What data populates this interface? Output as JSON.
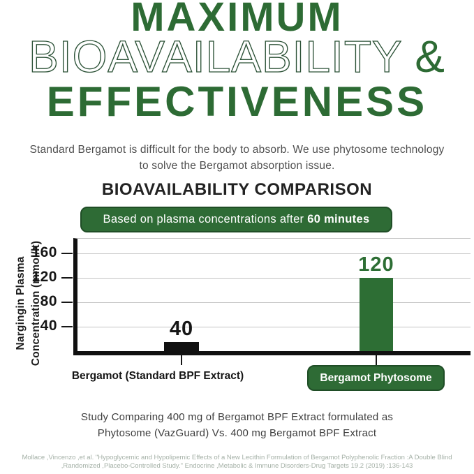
{
  "colors": {
    "accent_green": "#2d6b34",
    "badge_green": "#2e6b35",
    "badge_border": "#1f4d26",
    "bar_black": "#111111",
    "citation_gray_green": "#a4b0a6",
    "subtitle_gray": "#4e4e4e"
  },
  "header": {
    "title_line1": "MAXIMUM",
    "title_line2": "BIOAVAILABILITY ",
    "title_line2_amp": "&",
    "title_line3": "EFFECTIVENESS",
    "subtitle_line1": "Standard Bergamot is difficult for the body to absorb. We use phytosome technology",
    "subtitle_line2": "to solve the Bergamot absorption issue."
  },
  "chart": {
    "badge_text_regular": "Based on plasma concentrations after ",
    "badge_text_bold": "60 minutes"
  },
  "chart_data": {
    "type": "bar",
    "title": "BIOAVAILABILITY COMPARISON",
    "subtitle": "Based on plasma concentrations after 60 minutes",
    "categories": [
      "Bergamot (Standard BPF Extract)",
      "Bergamot Phytosome"
    ],
    "values": [
      40,
      120
    ],
    "drawn_values": [
      15,
      120
    ],
    "bar_colors": [
      "#111111",
      "#2d6e34"
    ],
    "value_label_colors": [
      "#161616",
      "#2d6e34"
    ],
    "ylabel_line1": "Nargingin Plasma",
    "ylabel_line2": "Concentration (mmol/lt)",
    "yticks": [
      40,
      80,
      120,
      160
    ],
    "ylim": [
      0,
      184
    ],
    "grid": true,
    "legend": "none"
  },
  "footer": {
    "study_line1": "Study Comparing 400 mg of Bergamot BPF Extract formulated as",
    "study_line2": "Phytosome (VazGuard) Vs. 400 mg Bergamot BPF Extract",
    "citation_line1": "Mollace ,Vincenzo ,et al. \"Hypoglycemic and Hypolipemic Effects of a New Lecithin Formulation of Bergamot Polyphenolic  Fraction  :A Double Blind",
    "citation_line2": ",Randomized ,Placebo-Controlled Study.\"  Endocrine ,Metabolic & Immune Disorders-Drug Targets 19.2 (2019) :136-143"
  }
}
